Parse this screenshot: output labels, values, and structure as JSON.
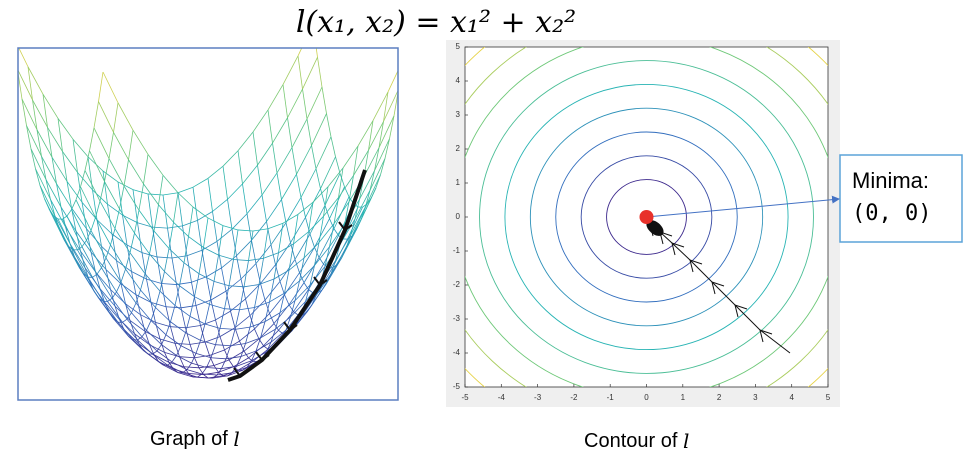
{
  "title": "l(x₁, x₂) = x₁² + x₂²",
  "captions": {
    "graph": "Graph of",
    "contour": "Contour of",
    "symbol": "l"
  },
  "annotation": {
    "line1": "Minima:",
    "line2": "(0, 0)"
  },
  "contour": {
    "xlim": [
      -5,
      5
    ],
    "ylim": [
      -5,
      5
    ],
    "xticks": [
      -5,
      -4,
      -3,
      -2,
      -1,
      0,
      1,
      2,
      3,
      4,
      5
    ],
    "yticks": [
      -5,
      -4,
      -3,
      -2,
      -1,
      0,
      1,
      2,
      3,
      4,
      5
    ]
  }
}
